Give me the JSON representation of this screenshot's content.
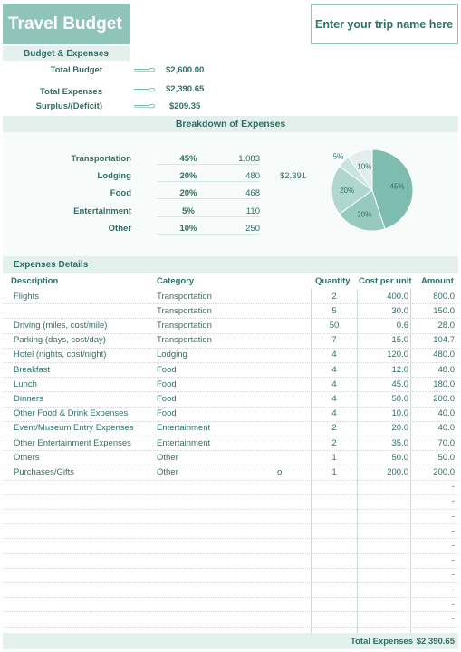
{
  "title": "Travel Budget",
  "trip_name_placeholder": "Enter your trip name here",
  "budget_section": {
    "heading": "Budget & Expenses",
    "rows": [
      {
        "label": "Total Budget",
        "value": "$2,600.00"
      },
      {
        "label": "Total Expenses",
        "value": "$2,390.65"
      },
      {
        "label": "Surplus/(Deficit)",
        "value": "$209.35"
      }
    ]
  },
  "breakdown": {
    "heading": "Breakdown of Expenses",
    "total": "$2,391",
    "rows": [
      {
        "label": "Transportation",
        "pct": "45%",
        "amount": "1,083"
      },
      {
        "label": "Lodging",
        "pct": "20%",
        "amount": "480"
      },
      {
        "label": "Food",
        "pct": "20%",
        "amount": "468"
      },
      {
        "label": "Entertainment",
        "pct": "5%",
        "amount": "110"
      },
      {
        "label": "Other",
        "pct": "10%",
        "amount": "250"
      }
    ]
  },
  "chart_data": {
    "type": "pie",
    "categories": [
      "Transportation",
      "Lodging",
      "Food",
      "Entertainment",
      "Other"
    ],
    "values": [
      45,
      20,
      20,
      5,
      10
    ],
    "data_labels": [
      "45%",
      "20%",
      "20%",
      "5%",
      "10%"
    ],
    "colors": [
      "#7dbcae",
      "#97cabe",
      "#b0d7ce",
      "#c9e4de",
      "#e0efeb"
    ]
  },
  "details": {
    "heading": "Expenses Details",
    "columns": [
      "Description",
      "Category",
      "Quantity",
      "Cost per unit",
      "Amount"
    ],
    "rows": [
      {
        "desc": "Flights",
        "cat": "Transportation",
        "mark": "",
        "qty": "2",
        "cost": "400.0",
        "amt": "800.0"
      },
      {
        "desc": "",
        "cat": "Transportation",
        "mark": "",
        "qty": "5",
        "cost": "30.0",
        "amt": "150.0"
      },
      {
        "desc": "Driving (miles, cost/mile)",
        "cat": "Transportation",
        "mark": "",
        "qty": "50",
        "cost": "0.6",
        "amt": "28.0"
      },
      {
        "desc": "Parking (days, cost/day)",
        "cat": "Transportation",
        "mark": "",
        "qty": "7",
        "cost": "15.0",
        "amt": "104.7"
      },
      {
        "desc": "Hotel (nights, cost/night)",
        "cat": "Lodging",
        "mark": "",
        "qty": "4",
        "cost": "120.0",
        "amt": "480.0"
      },
      {
        "desc": "Breakfast",
        "cat": "Food",
        "mark": "",
        "qty": "4",
        "cost": "12.0",
        "amt": "48.0"
      },
      {
        "desc": "Lunch",
        "cat": "Food",
        "mark": "",
        "qty": "4",
        "cost": "45.0",
        "amt": "180.0"
      },
      {
        "desc": "Dinners",
        "cat": "Food",
        "mark": "",
        "qty": "4",
        "cost": "50.0",
        "amt": "200.0"
      },
      {
        "desc": "Other Food & Drink Expenses",
        "cat": "Food",
        "mark": "",
        "qty": "4",
        "cost": "10.0",
        "amt": "40.0"
      },
      {
        "desc": "Event/Museum Entry Expenses",
        "cat": "Entertainment",
        "mark": "",
        "qty": "2",
        "cost": "20.0",
        "amt": "40.0"
      },
      {
        "desc": "Other Entertainment Expenses",
        "cat": "Entertainment",
        "mark": "",
        "qty": "2",
        "cost": "35.0",
        "amt": "70.0"
      },
      {
        "desc": "Others",
        "cat": "Other",
        "mark": "",
        "qty": "1",
        "cost": "50.0",
        "amt": "50.0"
      },
      {
        "desc": "Purchases/Gifts",
        "cat": "Other",
        "mark": "o",
        "qty": "1",
        "cost": "200.0",
        "amt": "200.0"
      },
      {
        "desc": "",
        "cat": "",
        "mark": "",
        "qty": "",
        "cost": "",
        "amt": "-"
      },
      {
        "desc": "",
        "cat": "",
        "mark": "",
        "qty": "",
        "cost": "",
        "amt": "-"
      },
      {
        "desc": "",
        "cat": "",
        "mark": "",
        "qty": "",
        "cost": "",
        "amt": "-"
      },
      {
        "desc": "",
        "cat": "",
        "mark": "",
        "qty": "",
        "cost": "",
        "amt": "-"
      },
      {
        "desc": "",
        "cat": "",
        "mark": "",
        "qty": "",
        "cost": "",
        "amt": "-"
      },
      {
        "desc": "",
        "cat": "",
        "mark": "",
        "qty": "",
        "cost": "",
        "amt": "-"
      },
      {
        "desc": "",
        "cat": "",
        "mark": "",
        "qty": "",
        "cost": "",
        "amt": "-"
      },
      {
        "desc": "",
        "cat": "",
        "mark": "",
        "qty": "",
        "cost": "",
        "amt": "-"
      },
      {
        "desc": "",
        "cat": "",
        "mark": "",
        "qty": "",
        "cost": "",
        "amt": "-"
      },
      {
        "desc": "",
        "cat": "",
        "mark": "",
        "qty": "",
        "cost": "",
        "amt": "-"
      },
      {
        "desc": "",
        "cat": "",
        "mark": "",
        "qty": "",
        "cost": "",
        "amt": "-"
      }
    ],
    "total_label": "Total Expenses",
    "total_value": "$2,390.65"
  }
}
